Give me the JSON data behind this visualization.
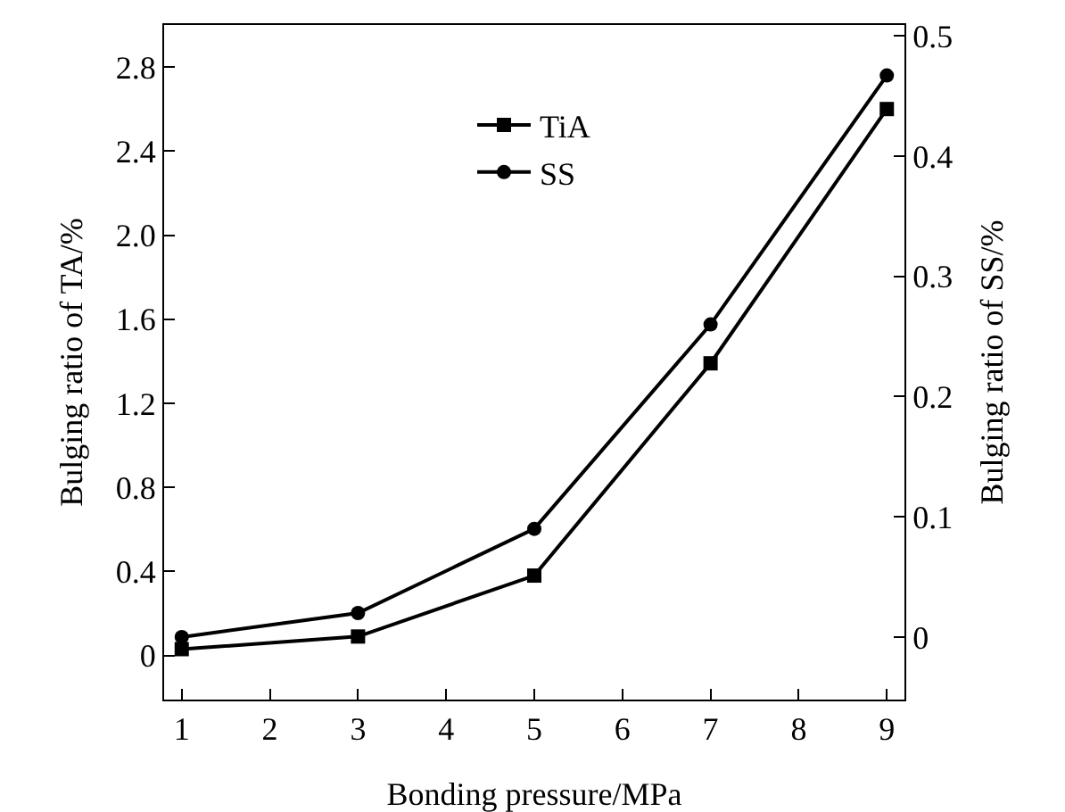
{
  "chart_data": {
    "type": "line",
    "xlabel": "Bonding pressure/MPa",
    "ylabel": "Bulging ratio of TA/%",
    "y2label": "Bulging ratio of SS/%",
    "x": [
      1,
      3,
      5,
      7,
      9
    ],
    "series": [
      {
        "name": "TiA",
        "color": "#000000",
        "marker": "square",
        "values": [
          0.03,
          0.09,
          0.38,
          1.39,
          2.6
        ]
      },
      {
        "name": "SS",
        "color": "#000000",
        "marker": "circle",
        "axis": "y2",
        "values": [
          0,
          0.02,
          0.09,
          0.26,
          0.467
        ]
      }
    ],
    "xlim": [
      0.8,
      9.2
    ],
    "xticks": [
      1,
      2,
      3,
      4,
      5,
      6,
      7,
      8,
      9
    ],
    "ylim": [
      -0.21,
      3.0
    ],
    "yticks": [
      {
        "value": 0,
        "label": "0"
      },
      0.4,
      0.8,
      1.2,
      1.6,
      {
        "value": 2,
        "label": "2.0"
      },
      2.4,
      2.8
    ],
    "y2lim": [
      -0.052,
      0.509
    ],
    "y2ticks": [
      {
        "value": 0,
        "label": "0"
      },
      0.1,
      0.2,
      0.3,
      0.4,
      0.5
    ],
    "grid": false,
    "legend": "top",
    "line_style": "solid"
  }
}
